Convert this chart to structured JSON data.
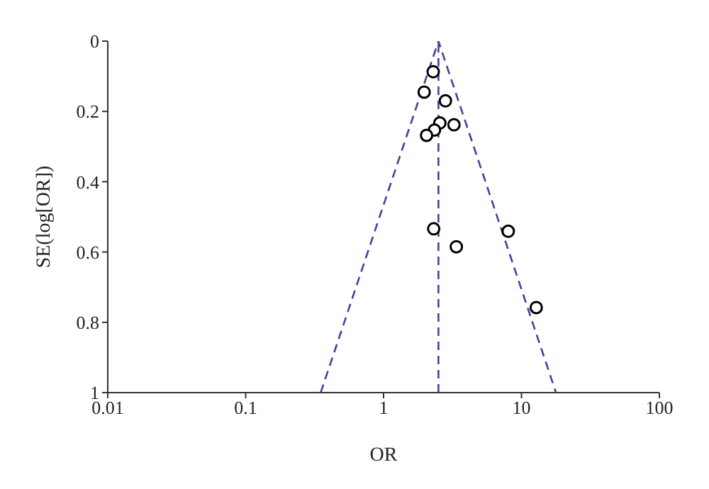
{
  "chart_data": {
    "type": "scatter",
    "xlabel": "OR",
    "ylabel": "SE(log[OR])",
    "log": "x",
    "xlim": [
      0.01,
      100
    ],
    "xticks": [
      0.01,
      0.1,
      1,
      10,
      100
    ],
    "ylim": [
      1,
      0
    ],
    "yticks": [
      0,
      0.2,
      0.4,
      0.6,
      0.8,
      1
    ],
    "grid": false,
    "legend": false,
    "marker": "circle",
    "series": [
      {
        "color": "#000000",
        "x": [
          2.29,
          1.97,
          2.81,
          2.56,
          3.24,
          2.34,
          2.05,
          2.31,
          8.02,
          3.37,
          12.8
        ],
        "values": [
          0.087,
          0.145,
          0.17,
          0.233,
          0.238,
          0.253,
          0.268,
          0.534,
          0.541,
          0.585,
          0.758
        ]
      },
      {
        "type": "line",
        "color": "#4b3ca0",
        "line_style": "dashed",
        "marker": "none",
        "x": [
          0.35,
          2.5,
          17.8
        ],
        "values": [
          1,
          0,
          1
        ]
      }
    ],
    "ref_lines": [
      {
        "axis": "x",
        "value": 2.5,
        "color": "#4b3ca0",
        "line_style": "dashed"
      }
    ]
  }
}
